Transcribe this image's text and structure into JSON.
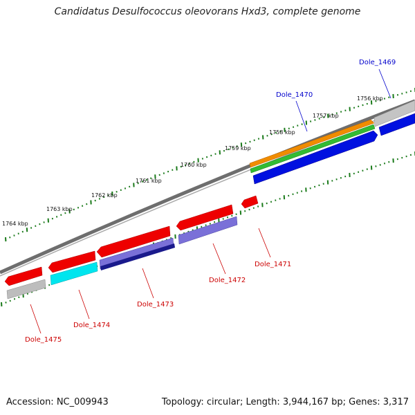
{
  "title": "Candidatus Desulfococcus oleovorans Hxd3, complete genome",
  "footer": {
    "accession": "Accession: NC_009943",
    "stats": "Topology: circular; Length: 3,944,167 bp; Genes: 3,317"
  },
  "scale_labels": [
    "1764 kbp",
    "1763 kbp",
    "1762 kbp",
    "1761 kbp",
    "1760 kbp",
    "1759 kbp",
    "1758 kbp",
    "1757 kbp",
    "1756 kbp"
  ],
  "gene_labels": [
    {
      "id": "lbl-1469",
      "text": "Dole_1469",
      "color": "#0000cc"
    },
    {
      "id": "lbl-1470",
      "text": "Dole_1470",
      "color": "#0000cc"
    },
    {
      "id": "lbl-1471",
      "text": "Dole_1471",
      "color": "#cc0000"
    },
    {
      "id": "lbl-1472",
      "text": "Dole_1472",
      "color": "#cc0000"
    },
    {
      "id": "lbl-1473",
      "text": "Dole_1473",
      "color": "#cc0000"
    },
    {
      "id": "lbl-1474",
      "text": "Dole_1474",
      "color": "#cc0000"
    },
    {
      "id": "lbl-1475",
      "text": "Dole_1475",
      "color": "#cc0000"
    }
  ],
  "colors": {
    "backbone": "#8a8a8a",
    "red": "#ee0000",
    "cyan": "#00e5ee",
    "slate": "#7a70d8",
    "navy": "#1a1a8c",
    "grey": "#b8b8b8",
    "orange": "#f08c00",
    "green": "#33bb33",
    "blue": "#0010e0",
    "ticks": "#1a7a1a"
  }
}
